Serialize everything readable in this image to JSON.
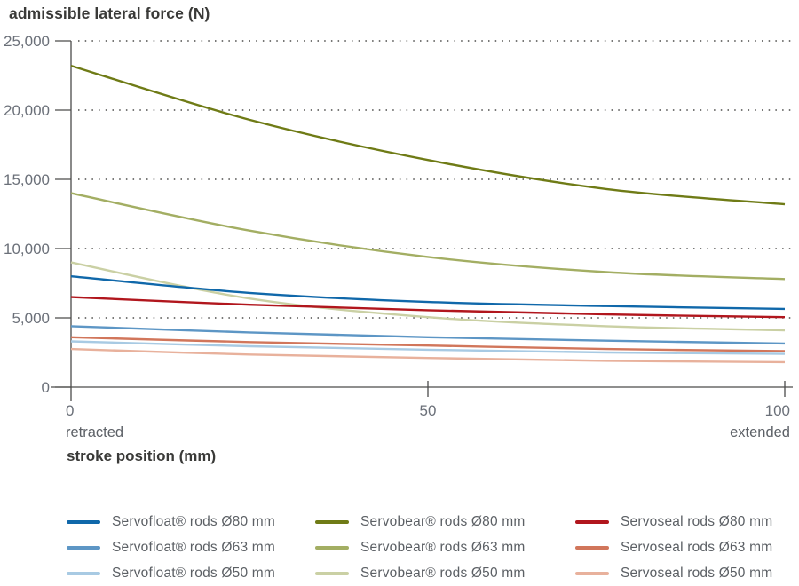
{
  "title": "admissible lateral force (N)",
  "x_axis_title": "stroke position (mm)",
  "colors": {
    "axis": "#4c4c4a",
    "tick_label": "#6b7079",
    "text_dark": "#3a3a38",
    "legend_text": "#5c6065"
  },
  "chart_data": {
    "type": "line",
    "title": "admissible lateral force (N)",
    "xlabel": "stroke position (mm)",
    "ylabel": "admissible lateral force (N)",
    "xlim": [
      0,
      100
    ],
    "ylim": [
      0,
      25000
    ],
    "grid": "dotted horizontal gridlines every 5000",
    "legend_position": "bottom, 3 columns",
    "x": [
      0,
      25,
      50,
      75,
      100
    ],
    "xticks": [
      {
        "v": 0,
        "label": "0",
        "align": "start",
        "sub": "retracted"
      },
      {
        "v": 50,
        "label": "50",
        "align": "middle",
        "sub": ""
      },
      {
        "v": 100,
        "label": "100",
        "align": "end",
        "sub": "extended"
      }
    ],
    "x_sub_labels": {
      "left": "retracted",
      "right": "extended"
    },
    "yticks": [
      {
        "v": 0,
        "label": "0"
      },
      {
        "v": 5000,
        "label": "5,000"
      },
      {
        "v": 10000,
        "label": "10,000"
      },
      {
        "v": 15000,
        "label": "15,000"
      },
      {
        "v": 20000,
        "label": "20,000"
      },
      {
        "v": 25000,
        "label": "25,000"
      }
    ],
    "series": [
      {
        "name": "Servofloat® rods Ø80 mm",
        "color": "#1068aa",
        "values": [
          8000,
          6800,
          6150,
          5850,
          5650
        ]
      },
      {
        "name": "Servofloat® rods Ø63 mm",
        "color": "#5d96c5",
        "values": [
          4400,
          3950,
          3600,
          3350,
          3150
        ]
      },
      {
        "name": "Servofloat® rods Ø50 mm",
        "color": "#a8cae3",
        "values": [
          3300,
          2950,
          2700,
          2500,
          2400
        ]
      },
      {
        "name": "Servobear® rods Ø80 mm",
        "color": "#6f7b16",
        "values": [
          23200,
          19300,
          16400,
          14300,
          13200
        ]
      },
      {
        "name": "Servobear® rods Ø63 mm",
        "color": "#a3ae63",
        "values": [
          14000,
          11300,
          9400,
          8300,
          7800
        ]
      },
      {
        "name": "Servobear® rods Ø50 mm",
        "color": "#cad0a4",
        "values": [
          9000,
          6400,
          5050,
          4400,
          4100
        ]
      },
      {
        "name": "Servoseal rods Ø80 mm",
        "color": "#b1161d",
        "values": [
          6500,
          5950,
          5550,
          5250,
          5050
        ]
      },
      {
        "name": "Servoseal rods Ø63 mm",
        "color": "#d1765b",
        "values": [
          3600,
          3250,
          3000,
          2750,
          2600
        ]
      },
      {
        "name": "Servoseal rods Ø50 mm",
        "color": "#e8b19c",
        "values": [
          2750,
          2350,
          2100,
          1900,
          1800
        ]
      }
    ]
  }
}
